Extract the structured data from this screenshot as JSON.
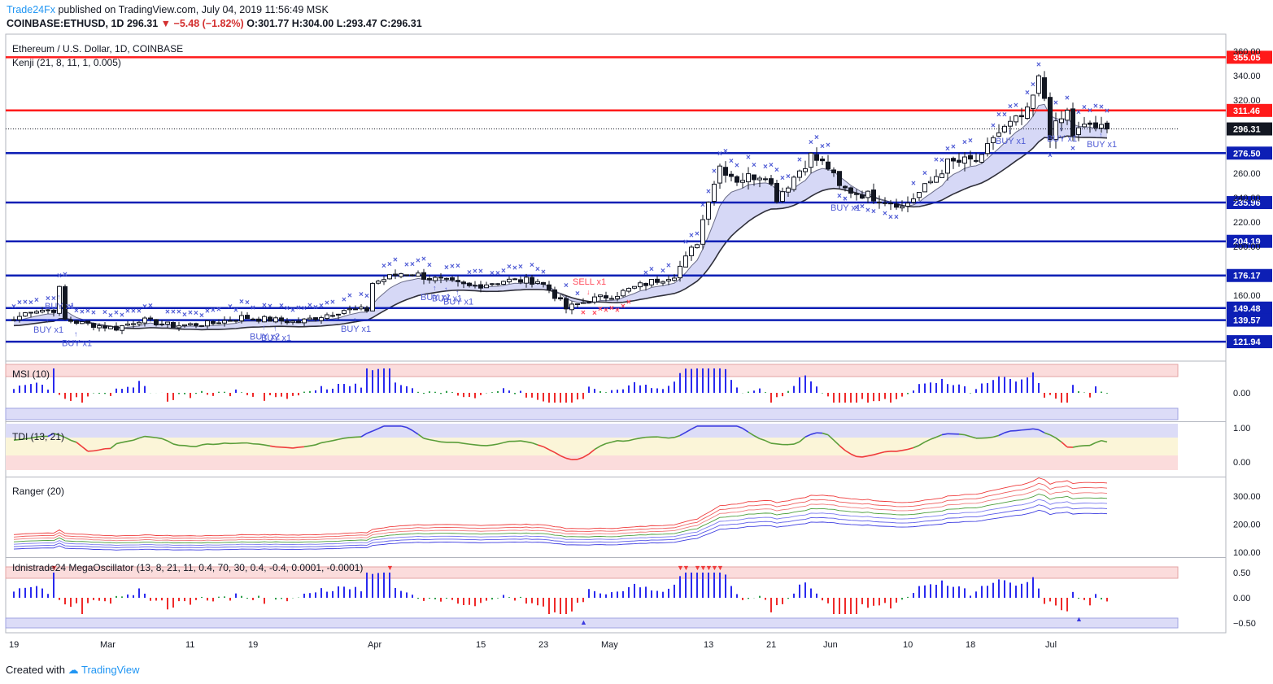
{
  "header": {
    "brand": "Trade24Fx",
    "published": "published on TradingView.com, July 04, 2019 11:56:49 MSK",
    "symbol_line": "COINBASE:ETHUSD, 1D",
    "last": "296.31",
    "change": "−5.48 (−1.82%)",
    "open_label": "O:",
    "open": "301.77",
    "high_label": "H:",
    "high": "304.00",
    "low_label": "L:",
    "low": "293.47",
    "close_label": "C:",
    "close": "296.31"
  },
  "footer": {
    "created_with": "Created with",
    "brand": "TradingView"
  },
  "colors": {
    "red_level": "#ff1a1a",
    "blue_level": "#0d1fb5",
    "buy_x": "#4f5bd5",
    "sell_x": "#ff4b5c",
    "price_label": "#131722",
    "ob_zone": "#fbdcdc",
    "os_zone": "#dcdcf7",
    "hist_up": "#2a2aef",
    "hist_down": "#ef2a2a",
    "hist_neutral": "#2e9e4a"
  },
  "chart_data": [
    {
      "type": "candlestick",
      "pane": "main",
      "title": "Ethereum / U.S. Dollar, 1D, COINBASE",
      "indicator_label": "Kenji (21, 8, 11, 1, 0.005)",
      "y_ticks": [
        160,
        200,
        220,
        240,
        260,
        320,
        340,
        360
      ],
      "y_range": [
        108,
        372
      ],
      "x_ticks": [
        "19",
        "Mar",
        "11",
        "19",
        "Apr",
        "15",
        "23",
        "May",
        "13",
        "21",
        "Jun",
        "10",
        "18",
        "Jul"
      ],
      "x_tick_index": [
        0,
        16,
        31,
        42,
        63,
        82,
        93,
        104,
        122,
        133,
        143,
        157,
        168,
        182
      ],
      "levels": [
        {
          "value": 355.05,
          "label": "355.05",
          "color": "red"
        },
        {
          "value": 311.46,
          "label": "311.46",
          "color": "red"
        },
        {
          "value": 276.5,
          "label": "276.50",
          "color": "blue"
        },
        {
          "value": 235.96,
          "label": "235.96",
          "color": "blue"
        },
        {
          "value": 204.19,
          "label": "204.19",
          "color": "blue"
        },
        {
          "value": 176.17,
          "label": "176.17",
          "color": "blue"
        },
        {
          "value": 149.48,
          "label": "149.48",
          "color": "blue"
        },
        {
          "value": 139.57,
          "label": "139.57",
          "color": "blue"
        },
        {
          "value": 121.94,
          "label": "121.94",
          "color": "blue"
        }
      ],
      "last_price": {
        "value": 296.31,
        "label": "296.31"
      },
      "signals": [
        {
          "text": "BUY x1",
          "index": 6,
          "side": "buy"
        },
        {
          "text": "BUY x1",
          "index": 8,
          "side": "buy"
        },
        {
          "text": "BUY x1",
          "index": 11,
          "side": "buy"
        },
        {
          "text": "BUY x2",
          "index": 44,
          "side": "buy"
        },
        {
          "text": "BUY x1",
          "index": 46,
          "side": "buy"
        },
        {
          "text": "BUY x1",
          "index": 60,
          "side": "buy"
        },
        {
          "text": "BUY x1",
          "index": 74,
          "side": "buy"
        },
        {
          "text": "BUY x1",
          "index": 76,
          "side": "buy"
        },
        {
          "text": "BUY x1",
          "index": 78,
          "side": "buy"
        },
        {
          "text": "SELL x1",
          "index": 101,
          "side": "sell"
        },
        {
          "text": "BUY x1",
          "index": 146,
          "side": "buy"
        },
        {
          "text": "BUY x1",
          "index": 175,
          "side": "buy"
        },
        {
          "text": "BUY x1",
          "index": 184,
          "side": "buy"
        },
        {
          "text": "BUY x1",
          "index": 191,
          "side": "buy"
        }
      ],
      "waypoints": [
        [
          0,
          140
        ],
        [
          3,
          148
        ],
        [
          7,
          148
        ],
        [
          8,
          165
        ],
        [
          9,
          140
        ],
        [
          12,
          137
        ],
        [
          18,
          133
        ],
        [
          22,
          140
        ],
        [
          28,
          135
        ],
        [
          35,
          137
        ],
        [
          40,
          142
        ],
        [
          50,
          138
        ],
        [
          58,
          148
        ],
        [
          62,
          148
        ],
        [
          63,
          170
        ],
        [
          68,
          178
        ],
        [
          70,
          178
        ],
        [
          73,
          174
        ],
        [
          80,
          167
        ],
        [
          86,
          172
        ],
        [
          92,
          172
        ],
        [
          94,
          165
        ],
        [
          97,
          149
        ],
        [
          101,
          156
        ],
        [
          106,
          161
        ],
        [
          110,
          168
        ],
        [
          116,
          177
        ],
        [
          118,
          190
        ],
        [
          120,
          204
        ],
        [
          122,
          240
        ],
        [
          124,
          266
        ],
        [
          127,
          255
        ],
        [
          132,
          260
        ],
        [
          134,
          240
        ],
        [
          140,
          274
        ],
        [
          143,
          265
        ],
        [
          145,
          248
        ],
        [
          150,
          242
        ],
        [
          155,
          236
        ],
        [
          156,
          232
        ],
        [
          160,
          248
        ],
        [
          164,
          268
        ],
        [
          170,
          271
        ],
        [
          172,
          290
        ],
        [
          178,
          309
        ],
        [
          180,
          336
        ],
        [
          181,
          322
        ],
        [
          182,
          292
        ],
        [
          185,
          310
        ],
        [
          186,
          292
        ],
        [
          189,
          300
        ],
        [
          191,
          296
        ]
      ]
    },
    {
      "type": "bar",
      "pane": "osc1",
      "title": "MSI (10)",
      "y_ticks": [
        0.0
      ],
      "tick_labels": [
        "0.00"
      ]
    },
    {
      "type": "line",
      "pane": "osc2",
      "title": "TDI (13, 21)",
      "y_ticks": [
        1.0,
        0.0
      ],
      "tick_labels": [
        "1.00",
        "0.00"
      ]
    },
    {
      "type": "line",
      "pane": "osc3",
      "title": "Ranger (20)",
      "y_ticks": [
        300,
        200,
        100
      ],
      "tick_labels": [
        "300.00",
        "200.00",
        "100.00"
      ]
    },
    {
      "type": "bar",
      "pane": "osc4",
      "title": "Idnistrade24 MegaOscillator (13, 8, 21, 11, 0.4, 70, 30, 0.4, -0.4, 0.0001, -0.0001)",
      "y_ticks": [
        0.5,
        0.0,
        -0.5
      ],
      "tick_labels": [
        "0.50",
        "0.00",
        "−0.50"
      ]
    }
  ]
}
